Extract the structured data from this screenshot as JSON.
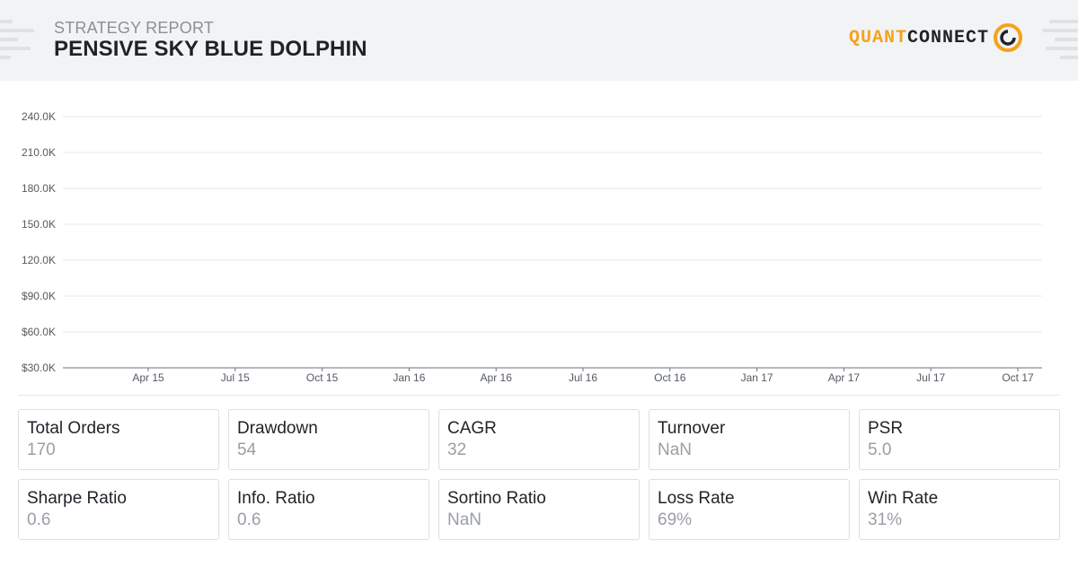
{
  "header": {
    "subtitle": "STRATEGY REPORT",
    "title": "PENSIVE SKY BLUE DOLPHIN",
    "logo": {
      "part1": "QUANT",
      "part2": "CONNECT",
      "accent": "#f5a21b"
    }
  },
  "chart_data": {
    "type": "line",
    "title": "",
    "xlabel": "",
    "ylabel": "",
    "y_ticks": [
      "$30.0K",
      "$60.0K",
      "$90.0K",
      "120.0K",
      "150.0K",
      "180.0K",
      "210.0K",
      "240.0K"
    ],
    "ylim": [
      30000,
      240000
    ],
    "x_ticks": [
      "Apr 15",
      "Jul 15",
      "Oct 15",
      "Jan 16",
      "Apr 16",
      "Jul 16",
      "Oct 16",
      "Jan 17",
      "Apr 17",
      "Jul 17",
      "Oct 17"
    ],
    "series": [],
    "grid": true
  },
  "metrics": [
    {
      "label": "Total Orders",
      "value": "170"
    },
    {
      "label": "Drawdown",
      "value": "54"
    },
    {
      "label": "CAGR",
      "value": "32"
    },
    {
      "label": "Turnover",
      "value": "NaN"
    },
    {
      "label": "PSR",
      "value": "5.0"
    },
    {
      "label": "Sharpe Ratio",
      "value": "0.6"
    },
    {
      "label": "Info. Ratio",
      "value": "0.6"
    },
    {
      "label": "Sortino Ratio",
      "value": "NaN"
    },
    {
      "label": "Loss Rate",
      "value": "69%"
    },
    {
      "label": "Win Rate",
      "value": "31%"
    }
  ]
}
